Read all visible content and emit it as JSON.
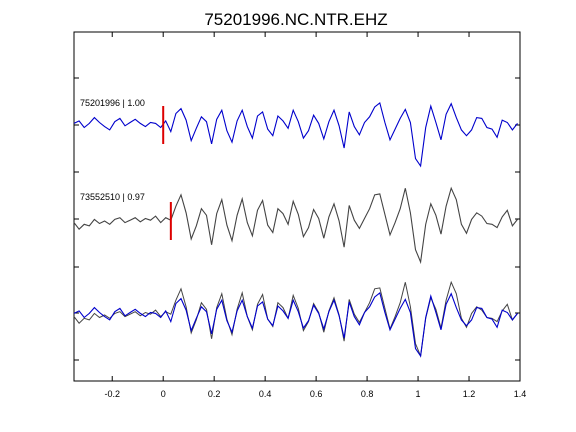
{
  "chart_data": {
    "type": "line",
    "title": "75201996.NC.NTR.EHZ",
    "xlabel": "",
    "ylabel": "",
    "xlim": [
      -0.35,
      1.4
    ],
    "x_ticks": [
      -0.2,
      0,
      0.2,
      0.4,
      0.6,
      0.8,
      1,
      1.2,
      1.4
    ],
    "x_tick_labels": [
      "-0.2",
      "0",
      "0.2",
      "0.4",
      "0.6",
      "0.8",
      "1",
      "1.2",
      "1.4"
    ],
    "grid": false,
    "legend": "none",
    "colors": {
      "reference": "#0000cc",
      "match": "#444444",
      "pick": "#dd0000",
      "axes": "#000000"
    },
    "traces": [
      {
        "label": "75201996 | 1.00",
        "station": "75201996",
        "correlation": "1.00",
        "pick_time": 0.0,
        "color": "#0000cc"
      },
      {
        "label": "73552510 | 0.97",
        "station": "73552510",
        "correlation": "0.97",
        "pick_time": 0.03,
        "color": "#444444"
      }
    ],
    "series": [
      {
        "id": "ref",
        "x": [
          -0.35,
          -0.33,
          -0.31,
          -0.29,
          -0.27,
          -0.25,
          -0.23,
          -0.21,
          -0.19,
          -0.17,
          -0.15,
          -0.13,
          -0.11,
          -0.09,
          -0.07,
          -0.05,
          -0.03,
          -0.01,
          0.01,
          0.03,
          0.05,
          0.07,
          0.09,
          0.11,
          0.13,
          0.15,
          0.17,
          0.19,
          0.21,
          0.23,
          0.25,
          0.27,
          0.29,
          0.31,
          0.33,
          0.35,
          0.37,
          0.39,
          0.41,
          0.43,
          0.45,
          0.47,
          0.49,
          0.51,
          0.53,
          0.55,
          0.57,
          0.59,
          0.61,
          0.63,
          0.65,
          0.67,
          0.69,
          0.71,
          0.73,
          0.75,
          0.77,
          0.79,
          0.81,
          0.83,
          0.85,
          0.87,
          0.89,
          0.91,
          0.93,
          0.95,
          0.97,
          0.99,
          1.01,
          1.03,
          1.05,
          1.07,
          1.09,
          1.11,
          1.13,
          1.15,
          1.17,
          1.19,
          1.21,
          1.23,
          1.25,
          1.27,
          1.29,
          1.31,
          1.33,
          1.35,
          1.37,
          1.39
        ],
        "y": [
          0.2,
          0.5,
          -0.3,
          0.2,
          0.9,
          0.3,
          -0.2,
          -0.6,
          0.4,
          0.8,
          -0.1,
          0.3,
          0.7,
          0.2,
          -0.2,
          0.3,
          0.2,
          -0.3,
          0.5,
          -0.8,
          1.4,
          2.0,
          0.6,
          -1.9,
          -0.4,
          1.0,
          0.4,
          -2.3,
          0.7,
          1.8,
          -0.7,
          -2.1,
          0.5,
          1.8,
          -0.2,
          -1.6,
          1.1,
          1.6,
          -0.5,
          -1.3,
          1.1,
          0.5,
          -0.4,
          1.8,
          0.4,
          -1.6,
          -0.7,
          1.2,
          0.2,
          -1.7,
          0.4,
          1.8,
          -0.1,
          -2.8,
          1.6,
          -0.2,
          -1.2,
          0.3,
          1.0,
          2.2,
          2.7,
          0.3,
          -1.8,
          -0.5,
          0.8,
          1.9,
          0.3,
          -4.1,
          -5.0,
          -0.3,
          2.3,
          0.3,
          -1.8,
          1.3,
          2.6,
          0.9,
          -0.6,
          -1.3,
          -0.6,
          0.9,
          0.8,
          -0.3,
          -0.5,
          -1.5,
          0.6,
          0.3,
          -0.6,
          0.2
        ]
      },
      {
        "id": "match",
        "x": [
          -0.35,
          -0.33,
          -0.31,
          -0.29,
          -0.27,
          -0.25,
          -0.23,
          -0.21,
          -0.19,
          -0.17,
          -0.15,
          -0.13,
          -0.11,
          -0.09,
          -0.07,
          -0.05,
          -0.03,
          -0.01,
          0.01,
          0.03,
          0.05,
          0.07,
          0.09,
          0.11,
          0.13,
          0.15,
          0.17,
          0.19,
          0.21,
          0.23,
          0.25,
          0.27,
          0.29,
          0.31,
          0.33,
          0.35,
          0.37,
          0.39,
          0.41,
          0.43,
          0.45,
          0.47,
          0.49,
          0.51,
          0.53,
          0.55,
          0.57,
          0.59,
          0.61,
          0.63,
          0.65,
          0.67,
          0.69,
          0.71,
          0.73,
          0.75,
          0.77,
          0.79,
          0.81,
          0.83,
          0.85,
          0.87,
          0.89,
          0.91,
          0.93,
          0.95,
          0.97,
          0.99,
          1.01,
          1.03,
          1.05,
          1.07,
          1.09,
          1.11,
          1.13,
          1.15,
          1.17,
          1.19,
          1.21,
          1.23,
          1.25,
          1.27,
          1.29,
          1.31,
          1.33,
          1.35,
          1.37,
          1.39
        ],
        "y": [
          -0.2,
          -1.0,
          -0.4,
          -0.6,
          0.2,
          -0.3,
          0.0,
          -0.4,
          0.2,
          0.4,
          -0.2,
          0.1,
          0.4,
          -0.1,
          0.3,
          0.1,
          0.6,
          -0.2,
          0.4,
          0.1,
          1.8,
          3.2,
          1.0,
          -2.2,
          -0.6,
          1.5,
          0.7,
          -2.9,
          0.9,
          2.6,
          -0.5,
          -2.4,
          0.7,
          2.7,
          -0.2,
          -1.8,
          1.3,
          2.5,
          -0.5,
          -1.4,
          1.5,
          0.9,
          -0.4,
          2.4,
          0.8,
          -1.9,
          -0.8,
          1.4,
          0.3,
          -2.1,
          0.5,
          2.1,
          0.0,
          -3.2,
          1.9,
          0.1,
          -0.9,
          0.3,
          1.5,
          3.2,
          3.3,
          0.8,
          -1.7,
          -0.2,
          1.5,
          4.0,
          1.0,
          -3.5,
          -5.0,
          -0.4,
          2.1,
          0.7,
          -1.6,
          1.8,
          4.0,
          2.6,
          -0.4,
          -1.5,
          0.2,
          1.0,
          0.6,
          -0.3,
          -0.4,
          -0.8,
          0.5,
          1.3,
          -0.6,
          0.2
        ]
      }
    ]
  }
}
